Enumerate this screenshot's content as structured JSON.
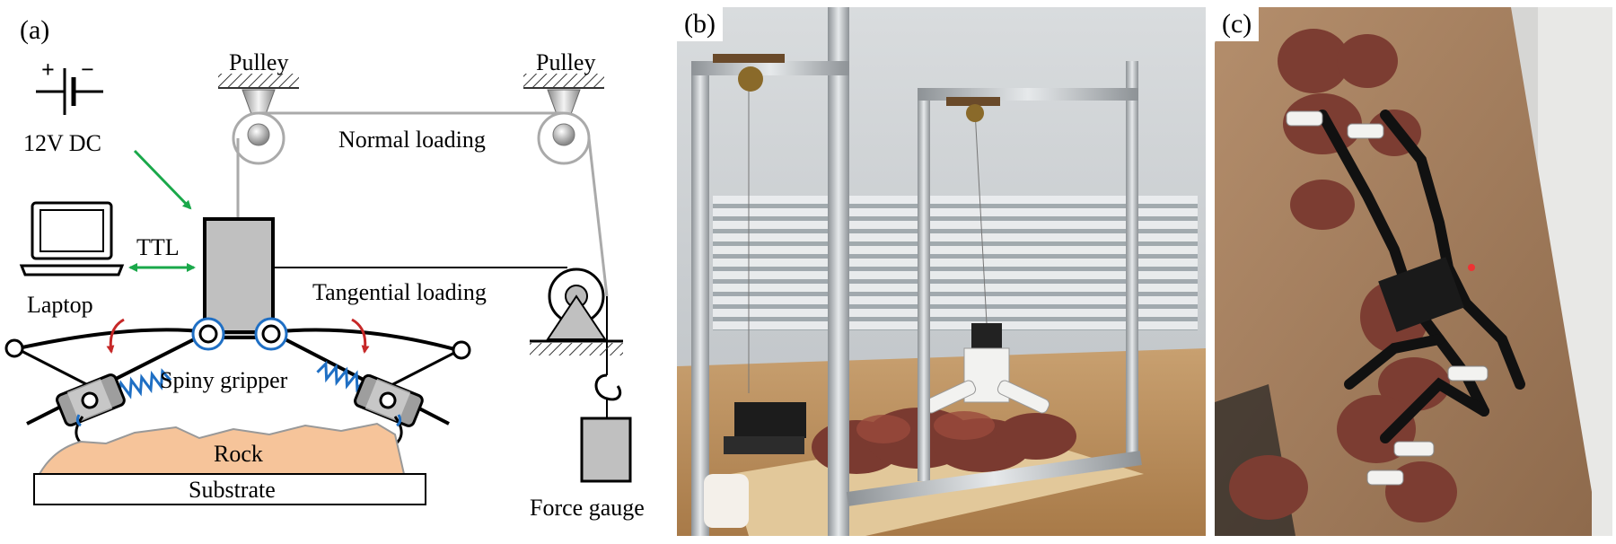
{
  "panel_a": {
    "label": "(a)",
    "battery": {
      "plus": "+",
      "minus": "−",
      "label": "12V DC"
    },
    "pulley_left": "Pulley",
    "pulley_right": "Pulley",
    "normal_loading": "Normal loading",
    "tangential_loading": "Tangential loading",
    "ttl": "TTL",
    "laptop": "Laptop",
    "spiny_gripper": "Spiny gripper",
    "rock": "Rock",
    "substrate": "Substrate",
    "force_gauge": "Force gauge",
    "colors": {
      "arrow_green": "#1aa84a",
      "spring_blue": "#1f6fc4",
      "arrow_red": "#c62828",
      "rock_fill": "#f6c49a",
      "box_gray": "#c0c0c0"
    }
  },
  "panel_b": {
    "label": "(b)"
  },
  "panel_c": {
    "label": "(c)"
  }
}
